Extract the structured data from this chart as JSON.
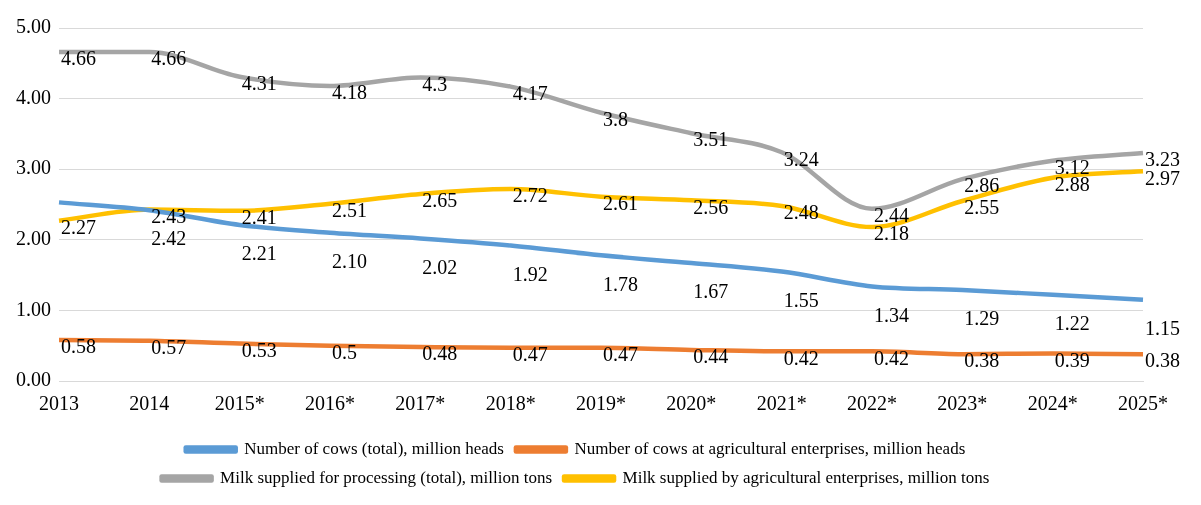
{
  "chart_data": {
    "type": "line",
    "categories": [
      "2013",
      "2014",
      "2015*",
      "2016*",
      "2017*",
      "2018*",
      "2019*",
      "2020*",
      "2021*",
      "2022*",
      "2023*",
      "2024*",
      "2025*"
    ],
    "series": [
      {
        "name": "Number of cows (total), million heads",
        "color": "#5b9bd5",
        "values": [
          2.53,
          2.42,
          2.21,
          2.1,
          2.02,
          1.92,
          1.78,
          1.67,
          1.55,
          1.34,
          1.29,
          1.22,
          1.15
        ],
        "value_labels": [
          null,
          "2.42",
          "2.21",
          "2.10",
          "2.02",
          "1.92",
          "1.78",
          "1.67",
          "1.55",
          "1.34",
          "1.29",
          "1.22",
          "1.15"
        ]
      },
      {
        "name": "Number of cows at agricultural enterprises, million heads",
        "color": "#ed7d31",
        "values": [
          0.58,
          0.57,
          0.53,
          0.5,
          0.48,
          0.47,
          0.47,
          0.44,
          0.42,
          0.42,
          0.38,
          0.39,
          0.38
        ],
        "value_labels": [
          "0.58",
          "0.57",
          "0.53",
          "0.5",
          "0.48",
          "0.47",
          "0.47",
          "0.44",
          "0.42",
          "0.42",
          "0.38",
          "0.39",
          "0.38"
        ]
      },
      {
        "name": "Milk supplied for processing (total), million tons",
        "color": "#a5a5a5",
        "values": [
          4.66,
          4.66,
          4.31,
          4.18,
          4.3,
          4.17,
          3.8,
          3.51,
          3.24,
          2.44,
          2.86,
          3.12,
          3.23
        ],
        "value_labels": [
          "4.66",
          "4.66",
          "4.31",
          "4.18",
          "4.3",
          "4.17",
          "3.8",
          "3.51",
          "3.24",
          "2.44",
          "2.86",
          "3.12",
          "3.23"
        ]
      },
      {
        "name": "Milk supplied by agricultural enterprises, million tons",
        "color": "#ffc000",
        "values": [
          2.27,
          2.43,
          2.41,
          2.51,
          2.65,
          2.72,
          2.61,
          2.56,
          2.48,
          2.18,
          2.55,
          2.88,
          2.97
        ],
        "value_labels": [
          "2.27",
          "2.43",
          "2.41",
          "2.51",
          "2.65",
          "2.72",
          "2.61",
          "2.56",
          "2.48",
          "2.18",
          "2.55",
          "2.88",
          "2.97"
        ]
      }
    ],
    "ylim": [
      0,
      5
    ],
    "yticks": [
      {
        "value": 0,
        "label": "0.00"
      },
      {
        "value": 1,
        "label": "1.00"
      },
      {
        "value": 2,
        "label": "2.00"
      },
      {
        "value": 3,
        "label": "3.00"
      },
      {
        "value": 4,
        "label": "4.00"
      },
      {
        "value": 5,
        "label": "5.00"
      }
    ],
    "grid": "y",
    "legend": "bottom",
    "marker": "none",
    "line_style": "solid"
  }
}
